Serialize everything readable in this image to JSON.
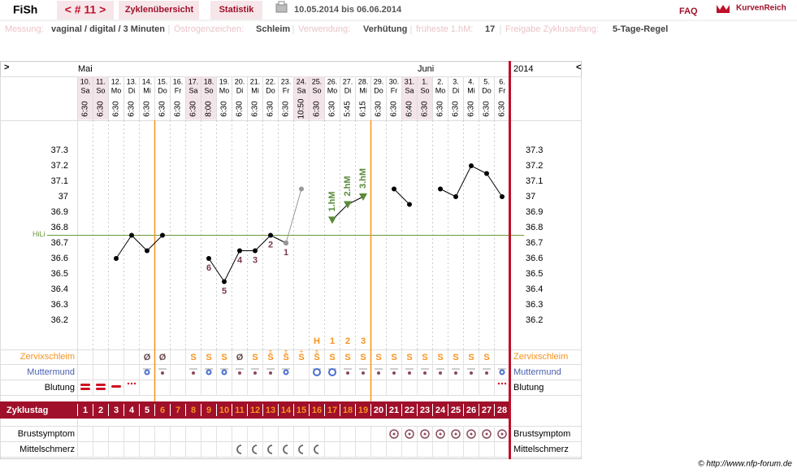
{
  "header": {
    "user": "FiSh",
    "cycle_nav": "< # 11 >",
    "tabs": [
      "Zyklenübersicht",
      "Statistik"
    ],
    "period": "10.05.2014 bis 06.06.2014",
    "faq": "FAQ",
    "logo": "KurvenReich"
  },
  "info": [
    {
      "label": "Messung:",
      "value": "vaginal / digital / 3 Minuten"
    },
    {
      "label": "Östrogenzeichen:",
      "value": "Schleim"
    },
    {
      "label": "Verwendung:",
      "value": "Verhütung"
    },
    {
      "label": "früheste 1.hM:",
      "value": "17"
    },
    {
      "label": "Freigabe Zyklusanfang:",
      "value": "5-Tage-Regel"
    }
  ],
  "nav": {
    "left": ">",
    "right": "<"
  },
  "chart_data": {
    "type": "line",
    "months": [
      "Mai",
      "Juni"
    ],
    "year": "2014",
    "categories": [
      "10.",
      "11.",
      "12.",
      "13.",
      "14.",
      "15.",
      "16.",
      "17.",
      "18.",
      "19.",
      "20.",
      "21.",
      "22.",
      "23.",
      "24.",
      "25.",
      "26.",
      "27.",
      "28.",
      "29.",
      "30.",
      "31.",
      "1.",
      "2.",
      "3.",
      "4.",
      "5.",
      "6."
    ],
    "weekdays": [
      "Sa",
      "So",
      "Mo",
      "Di",
      "Mi",
      "Do",
      "Fr",
      "Sa",
      "So",
      "Mo",
      "Di",
      "Mi",
      "Do",
      "Fr",
      "Sa",
      "So",
      "Mo",
      "Di",
      "Mi",
      "Do",
      "Fr",
      "Sa",
      "So",
      "Mo",
      "Di",
      "Mi",
      "Do",
      "Fr"
    ],
    "times": [
      "6:30",
      "6:30",
      "6:30",
      "6:30",
      "6:30",
      "6:30",
      "6:30",
      "6:30",
      "8:00",
      "6:30",
      "6:30",
      "6:30",
      "6:30",
      "6:30",
      "10:50",
      "6:30",
      "6:30",
      "5:45",
      "6:15",
      "6:30",
      "6:30",
      "6:40",
      "6:30",
      "6:30",
      "6:30",
      "6:30",
      "6:30",
      "6:30"
    ],
    "series": [
      {
        "color": "#000000",
        "values": [
          null,
          null,
          36.6,
          36.75,
          36.65,
          36.75,
          null,
          null,
          36.6,
          36.45,
          36.65,
          36.65,
          36.75,
          36.7,
          null,
          null,
          36.85,
          36.95,
          37.0,
          null,
          37.05,
          36.95,
          null,
          37.05,
          37.0,
          37.2,
          37.15,
          37.0
        ]
      },
      {
        "color": "#999999",
        "values": [
          null,
          null,
          null,
          null,
          null,
          null,
          null,
          null,
          null,
          null,
          null,
          null,
          null,
          36.7,
          37.05,
          null,
          null,
          null,
          null,
          null,
          null,
          null,
          null,
          null,
          null,
          null,
          null,
          null
        ]
      }
    ],
    "point_labels": [
      null,
      null,
      null,
      null,
      null,
      null,
      null,
      null,
      6,
      5,
      4,
      3,
      2,
      1,
      null,
      null,
      null,
      null,
      null,
      null,
      null,
      null,
      null,
      null,
      null,
      null,
      null,
      null
    ],
    "hm_labels": [
      null,
      null,
      null,
      null,
      null,
      null,
      null,
      null,
      null,
      null,
      null,
      null,
      null,
      null,
      null,
      null,
      "1.hM",
      "2.hM",
      "3.hM",
      null,
      null,
      null,
      null,
      null,
      null,
      null,
      null,
      null
    ],
    "hm_color": "#5a8a3a",
    "hline": {
      "label": "HiLi",
      "value": 36.75,
      "color": "#6a9a3a"
    },
    "ylim": [
      36.0,
      37.5
    ],
    "yticks": [
      36.2,
      36.3,
      36.4,
      36.5,
      36.6,
      36.7,
      36.8,
      36.9,
      37,
      37.1,
      37.2,
      37.3
    ]
  },
  "rows": {
    "peak": [
      null,
      null,
      null,
      null,
      null,
      null,
      null,
      null,
      null,
      null,
      null,
      null,
      null,
      null,
      null,
      "H",
      "1",
      "2",
      "3",
      null,
      null,
      null,
      null,
      null,
      null,
      null,
      null,
      null
    ],
    "plus": [
      null,
      null,
      null,
      null,
      null,
      null,
      null,
      null,
      null,
      null,
      null,
      null,
      "±",
      "±",
      "+",
      "±",
      null,
      null,
      null,
      null,
      null,
      null,
      null,
      null,
      null,
      null,
      null,
      null
    ],
    "zervix": {
      "label": "Zervixschleim",
      "values": [
        null,
        null,
        null,
        null,
        "Ø",
        "Ø",
        null,
        "S",
        "S",
        "S",
        "Ø",
        "S",
        "S",
        "S",
        "S",
        "S",
        "S",
        "S",
        "S",
        "S",
        "S",
        "S",
        "S",
        "S",
        "S",
        "S",
        "S",
        null
      ]
    },
    "muttermund": {
      "label": "Muttermund"
    },
    "blutung": {
      "label": "Blutung"
    },
    "zyklustag": {
      "label": "Zyklustag",
      "values": [
        1,
        2,
        3,
        4,
        5,
        6,
        7,
        8,
        9,
        10,
        11,
        12,
        13,
        14,
        15,
        16,
        17,
        18,
        19,
        20,
        21,
        22,
        23,
        24,
        25,
        26,
        27,
        28
      ]
    },
    "brust": {
      "label": "Brustsymptom"
    },
    "mittel": {
      "label": "Mittelschmerz"
    }
  },
  "footer": "© http://www.nfp-forum.de"
}
